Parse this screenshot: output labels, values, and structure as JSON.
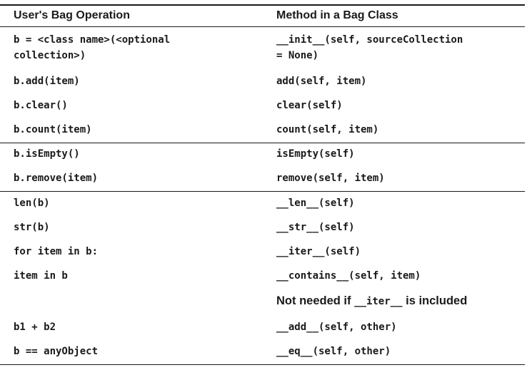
{
  "table": {
    "headers": {
      "operation": "User's Bag Operation",
      "method": "Method in a Bag Class"
    },
    "rows": [
      {
        "operation_lines": [
          "b = <class name>(<optional",
          "collection>)"
        ],
        "method_lines": [
          "__init__(self, sourceCollection",
          "= None)"
        ]
      },
      {
        "operation": "b.add(item)",
        "method": "add(self, item)"
      },
      {
        "operation": "b.clear()",
        "method": "clear(self)"
      },
      {
        "operation": "b.count(item)",
        "method": "count(self, item)"
      },
      {
        "operation": "b.isEmpty()",
        "method": "isEmpty(self)"
      },
      {
        "operation": "b.remove(item)",
        "method": "remove(self, item)"
      },
      {
        "operation": "len(b)",
        "method": "__len__(self)"
      },
      {
        "operation": "str(b)",
        "method": "__str__(self)"
      },
      {
        "operation": "for item in b:",
        "method": "__iter__(self)"
      },
      {
        "operation": "item in b",
        "method": "__contains__(self, item)"
      },
      {
        "operation": "",
        "note_prefix": "Not needed if ",
        "note_code": "__iter__",
        "note_suffix": " is included"
      },
      {
        "operation": "b1 + b2",
        "method": "__add__(self, other)"
      },
      {
        "operation": "b == anyObject",
        "method": "__eq__(self, other)"
      }
    ]
  }
}
